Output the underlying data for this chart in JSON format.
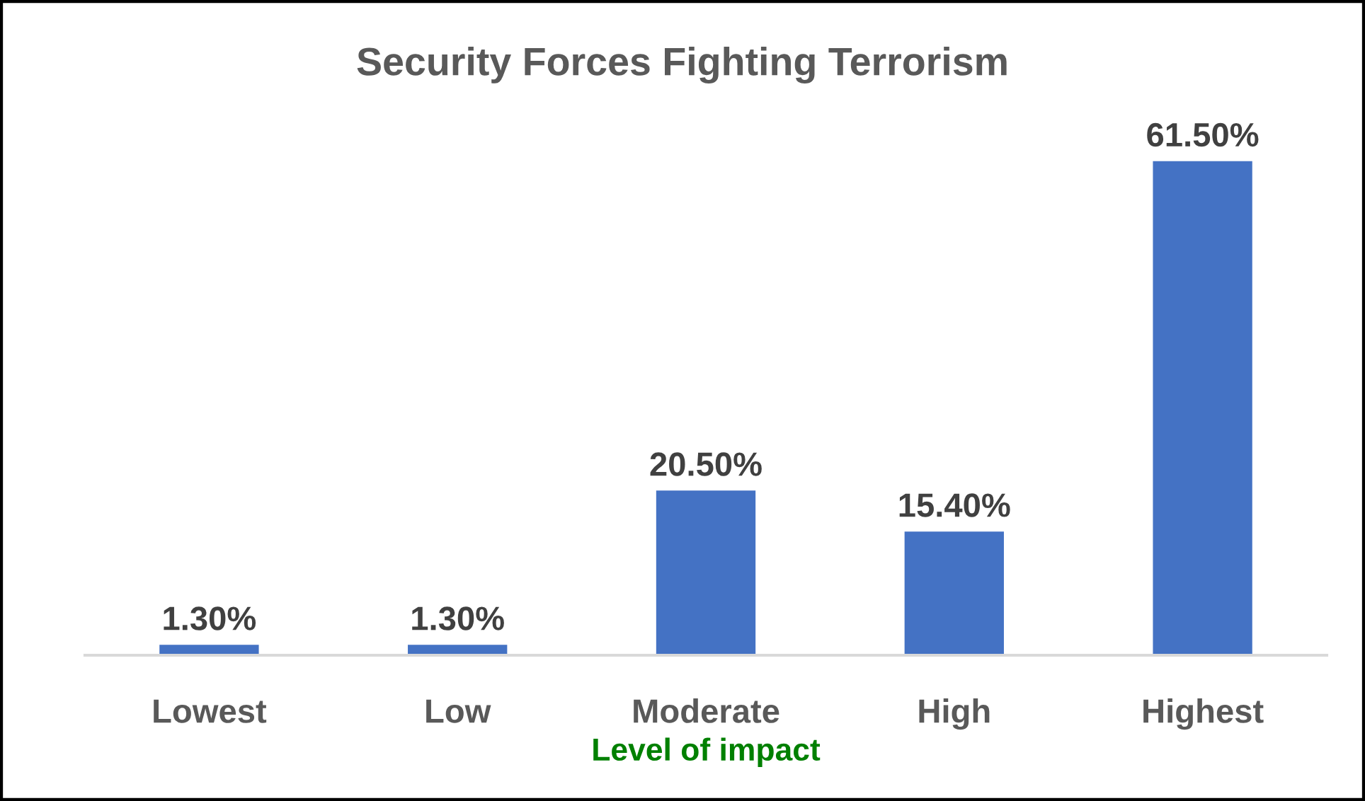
{
  "chart_data": {
    "type": "bar",
    "title": "Security Forces Fighting Terrorism",
    "xlabel": "Level of impact",
    "categories": [
      "Lowest",
      "Low",
      "Moderate",
      "High",
      "Highest"
    ],
    "values": [
      1.3,
      1.3,
      20.5,
      15.4,
      61.5
    ],
    "color": "#4472c4",
    "value_labels": [
      "1.30%",
      "1.30%",
      "20.50%",
      "15.40%",
      "61.50%"
    ]
  }
}
